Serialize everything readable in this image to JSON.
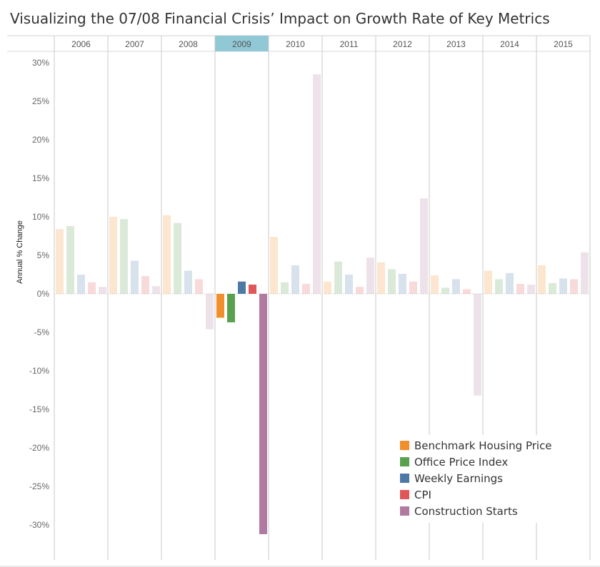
{
  "title": "Visualizing the 07/08 Financial Crisis’ Impact on Growth Rate of Key Metrics",
  "chart_data": {
    "type": "bar",
    "categories": [
      "2006",
      "2007",
      "2008",
      "2009",
      "2010",
      "2011",
      "2012",
      "2013",
      "2014",
      "2015"
    ],
    "highlighted_category": "2009",
    "ylabel": "Annual % Change",
    "ylim": [
      -33,
      30
    ],
    "yticks": [
      30,
      25,
      20,
      15,
      10,
      5,
      0,
      -5,
      -10,
      -15,
      -20,
      -25,
      -30
    ],
    "ytick_labels": [
      "30%",
      "25%",
      "20%",
      "15%",
      "10%",
      "5%",
      "0%",
      "-5%",
      "-10%",
      "-15%",
      "-20%",
      "-25%",
      "-30%"
    ],
    "series": [
      {
        "name": "Benchmark Housing Price",
        "color": "#f28e2b",
        "values": [
          8.4,
          10.0,
          10.2,
          -3.1,
          7.4,
          1.6,
          4.1,
          2.4,
          3.0,
          3.7
        ]
      },
      {
        "name": "Office Price Index",
        "color": "#59a14f",
        "values": [
          8.8,
          9.7,
          9.2,
          -3.7,
          1.5,
          4.2,
          3.2,
          0.8,
          1.9,
          1.4
        ]
      },
      {
        "name": "Weekly Earnings",
        "color": "#4e79a7",
        "values": [
          2.5,
          4.3,
          3.0,
          1.6,
          3.7,
          2.5,
          2.6,
          1.9,
          2.7,
          2.0
        ]
      },
      {
        "name": "CPI",
        "color": "#e15759",
        "values": [
          1.5,
          2.3,
          1.9,
          1.2,
          1.3,
          0.9,
          1.6,
          0.6,
          1.3,
          1.9
        ]
      },
      {
        "name": "Construction Starts",
        "color": "#b07aa1",
        "values": [
          0.9,
          1.0,
          -4.6,
          -31.2,
          28.5,
          4.7,
          12.4,
          -13.2,
          1.2,
          5.4
        ]
      }
    ],
    "legend_position": "bottom-right",
    "grid": false
  },
  "colors": {
    "header_highlight": "#91c8d6",
    "divider": "#c8c8c8",
    "text": "#333333"
  }
}
